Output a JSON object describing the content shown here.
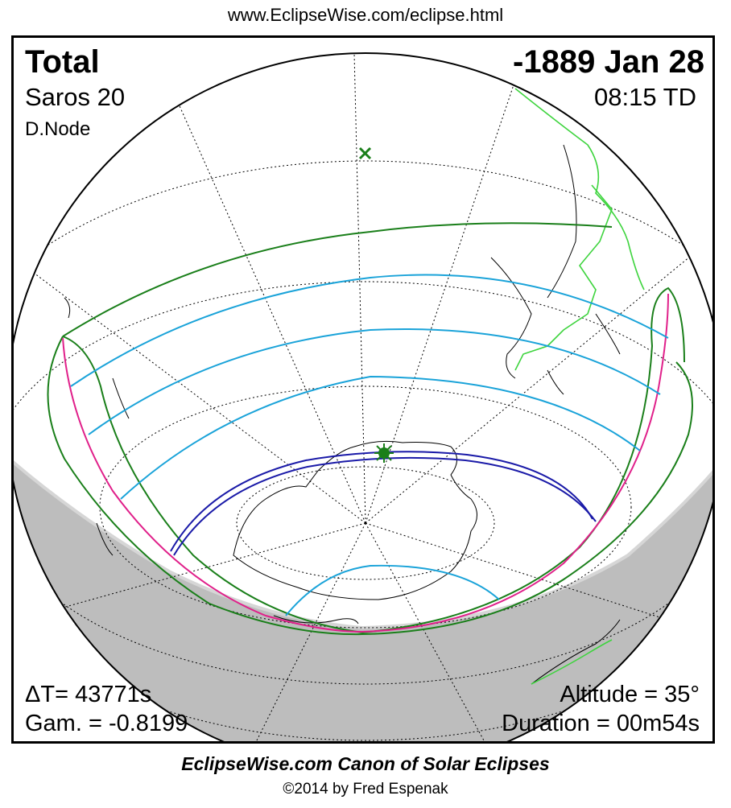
{
  "header": {
    "url": "www.EclipseWise.com/eclipse.html"
  },
  "eclipse": {
    "type": "Total",
    "date": "-1889 Jan 28",
    "saros": "Saros  20",
    "time": "08:15 TD",
    "node": "D.Node",
    "delta_t": "ΔT=  43771s",
    "gamma": "Gam. = -0.8199",
    "altitude": "Altitude = 35°",
    "duration": "Duration = 00m54s"
  },
  "footer": {
    "title": "EclipseWise.com Canon of Solar Eclipses",
    "credit": "©2014 by Fred Espenak"
  },
  "colors": {
    "night_shade": "#bdbdbd",
    "penumbra_limits": "#1a7f1a",
    "partial_magnitude_lines": "#1aa3d9",
    "rise_set_curves": "#e0208a",
    "totality_path": "#1a1aa8",
    "coastlines": "#000000",
    "green_land_borders": "#3ed43e",
    "greatest_eclipse_marker": "#1a7f1a"
  },
  "icons": {
    "subsolar_point": "green-x-marker-icon",
    "greatest_eclipse": "green-star-marker-icon"
  }
}
